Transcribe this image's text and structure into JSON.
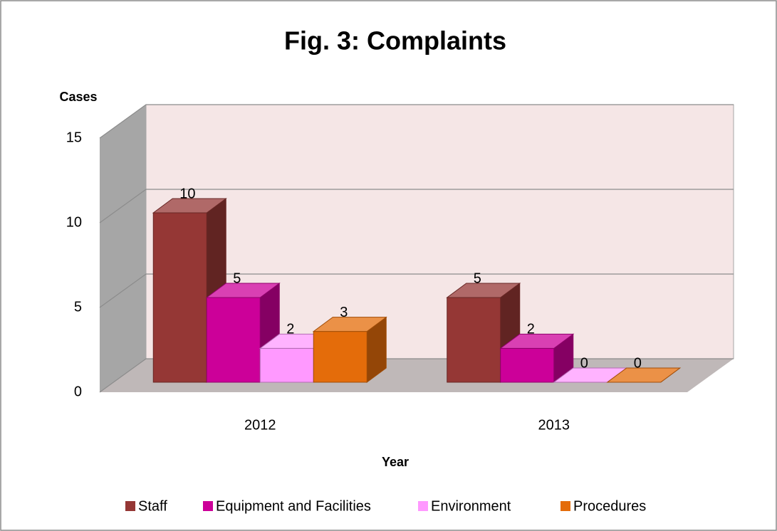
{
  "chart_data": {
    "type": "bar3d",
    "title": "Fig. 3: Complaints",
    "y_label": "Cases",
    "x_label": "Year",
    "categories": [
      "2012",
      "2013"
    ],
    "series": [
      {
        "name": "Staff",
        "color": "#953735",
        "values": [
          10,
          5
        ]
      },
      {
        "name": "Equipment and Facilities",
        "color": "#cc0099",
        "values": [
          5,
          2
        ]
      },
      {
        "name": "Environment",
        "color": "#ff99ff",
        "values": [
          2,
          0
        ]
      },
      {
        "name": "Procedures",
        "color": "#e46c0a",
        "values": [
          3,
          0
        ]
      }
    ],
    "ylim": [
      0,
      15
    ],
    "yticks": [
      0,
      5,
      10,
      15
    ],
    "grid": true,
    "legend": "bottom",
    "data_labels": true
  }
}
